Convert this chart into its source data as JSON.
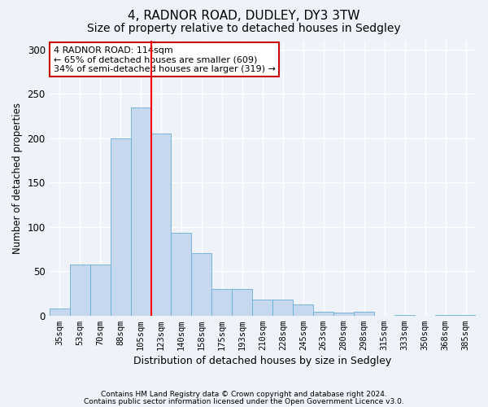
{
  "title1": "4, RADNOR ROAD, DUDLEY, DY3 3TW",
  "title2": "Size of property relative to detached houses in Sedgley",
  "xlabel": "Distribution of detached houses by size in Sedgley",
  "ylabel": "Number of detached properties",
  "categories": [
    "35sqm",
    "53sqm",
    "70sqm",
    "88sqm",
    "105sqm",
    "123sqm",
    "140sqm",
    "158sqm",
    "175sqm",
    "193sqm",
    "210sqm",
    "228sqm",
    "245sqm",
    "263sqm",
    "280sqm",
    "298sqm",
    "315sqm",
    "333sqm",
    "350sqm",
    "368sqm",
    "385sqm"
  ],
  "values": [
    8,
    58,
    58,
    200,
    235,
    205,
    93,
    70,
    30,
    30,
    18,
    18,
    13,
    4,
    3,
    4,
    0,
    1,
    0,
    1,
    1
  ],
  "bar_color": "#c5d8ee",
  "bar_edge_color": "#6aaed6",
  "red_line_index": 5,
  "annotation_line1": "4 RADNOR ROAD: 114sqm",
  "annotation_line2": "← 65% of detached houses are smaller (609)",
  "annotation_line3": "34% of semi-detached houses are larger (319) →",
  "annotation_box_color": "#ffffff",
  "annotation_box_edge_color": "#cc0000",
  "footer1": "Contains HM Land Registry data © Crown copyright and database right 2024.",
  "footer2": "Contains public sector information licensed under the Open Government Licence v3.0.",
  "ylim": [
    0,
    310
  ],
  "yticks": [
    0,
    50,
    100,
    150,
    200,
    250,
    300
  ],
  "bg_color": "#eef2f9",
  "plot_bg_color": "#eef2f9",
  "grid_color": "#ffffff",
  "title_fontsize": 11,
  "subtitle_fontsize": 10
}
